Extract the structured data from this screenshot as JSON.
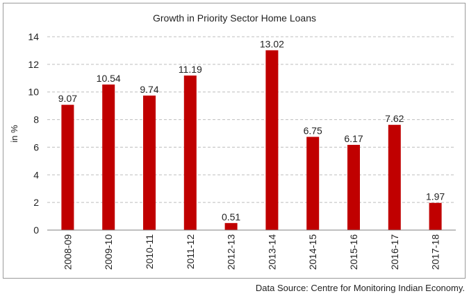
{
  "chart_data": {
    "type": "bar",
    "title": "Growth in Priority Sector Home Loans",
    "ylabel": "in %",
    "xlabel": "",
    "categories": [
      "2008-09",
      "2009-10",
      "2010-11",
      "2011-12",
      "2012-13",
      "2013-14",
      "2014-15",
      "2015-16",
      "2016-17",
      "2017-18"
    ],
    "values": [
      9.07,
      10.54,
      9.74,
      11.19,
      0.51,
      13.02,
      6.75,
      6.17,
      7.62,
      1.97
    ],
    "value_labels": [
      "9.07",
      "10.54",
      "9.74",
      "11.19",
      "0.51",
      "13.02",
      "6.75",
      "6.17",
      "7.62",
      "1.97"
    ],
    "ylim": [
      0,
      14
    ],
    "yticks": [
      0,
      2,
      4,
      6,
      8,
      10,
      12,
      14
    ],
    "grid": true,
    "bar_color": "#c00000"
  },
  "source": "Data Source: Centre for Monitoring Indian Economy."
}
